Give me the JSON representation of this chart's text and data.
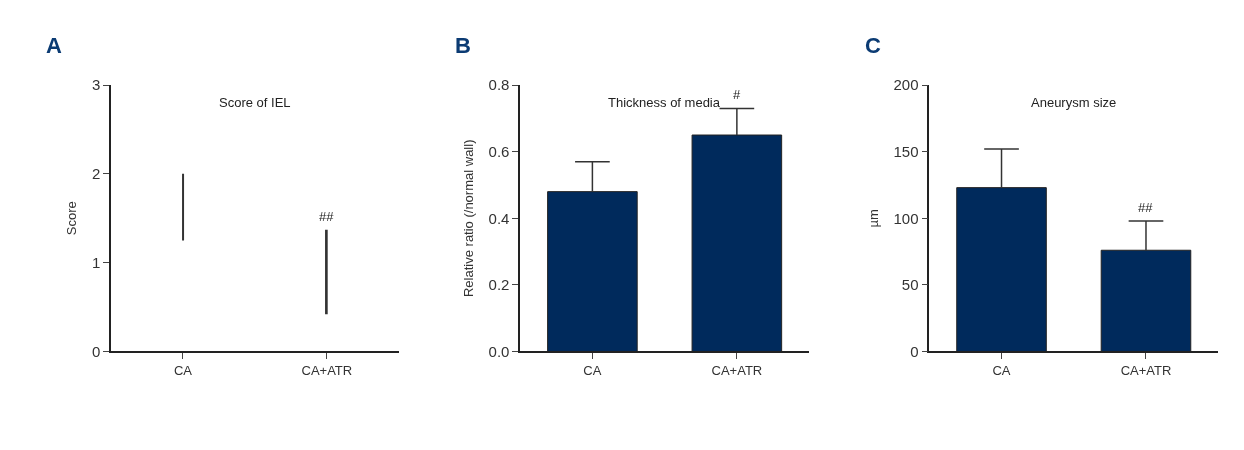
{
  "chart_data": [
    {
      "type": "bar",
      "title": "Score of IEL",
      "ylabel": "Score",
      "categories": [
        "CA",
        "CA+ATR"
      ],
      "values": [
        0.75,
        0.95
      ],
      "base": [
        1.25,
        0.42
      ],
      "color": "#333333",
      "ylim": [
        0,
        3
      ],
      "yticks": [
        0,
        1,
        2,
        3
      ],
      "annotations": [
        "A",
        "##"
      ]
    },
    {
      "type": "bar",
      "title": "Thickness of media",
      "ylabel": "Relative ratio (/normal wall)",
      "categories": [
        "CA",
        "CA+ATR"
      ],
      "values": [
        0.48,
        0.65
      ],
      "errors": [
        [
          0.48,
          0.57
        ],
        [
          0.65,
          0.73
        ]
      ],
      "color": "#002a5c",
      "ylim": [
        0,
        0.8
      ],
      "yticks": [
        {
          "value": 0,
          "label": "0.0"
        },
        0.2,
        0.4,
        0.6,
        0.8
      ],
      "annotations": [
        "B",
        "#"
      ]
    },
    {
      "type": "bar",
      "title": "Aneurysm size",
      "ylabel": "µm",
      "categories": [
        "CA",
        "CA+ATR"
      ],
      "values": [
        123,
        76
      ],
      "errors": [
        [
          123,
          152
        ],
        [
          76,
          98
        ]
      ],
      "color": "#002a5c",
      "ylim": [
        0,
        200
      ],
      "yticks": [
        0,
        50,
        100,
        150,
        200
      ],
      "annotations": [
        "C",
        "##"
      ]
    }
  ]
}
